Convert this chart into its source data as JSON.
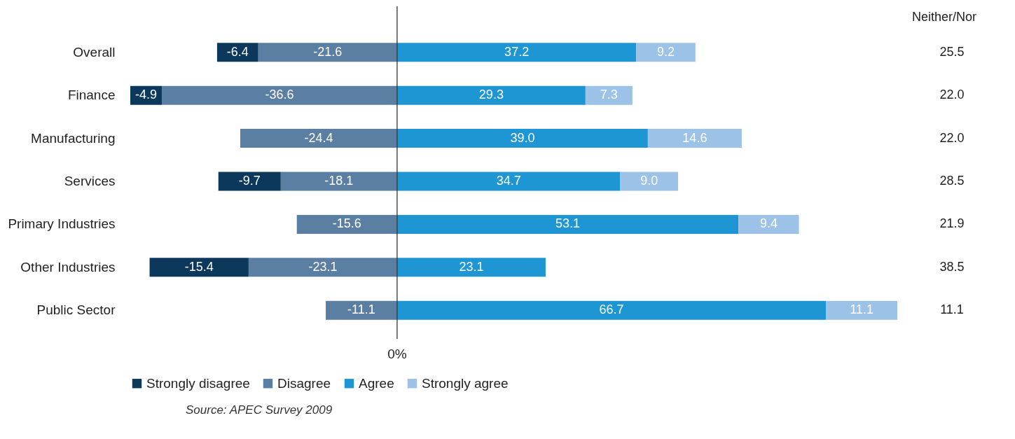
{
  "chart_data": {
    "type": "bar",
    "orientation": "horizontal",
    "stacked": true,
    "legend": "bottom",
    "categories": [
      "Overall",
      "Finance",
      "Manufacturing",
      "Services",
      "Primary Industries",
      "Other Industries",
      "Public Sector"
    ],
    "series": [
      {
        "name": "Disagree",
        "color": "#5b7ea3",
        "values": [
          -21.6,
          -36.6,
          -24.4,
          -18.1,
          -15.6,
          -23.1,
          -11.1
        ],
        "value_labels": [
          "-21.6",
          "-36.6",
          "-24.4",
          "-18.1",
          "-15.6",
          "-23.1",
          "-11.1"
        ]
      },
      {
        "name": "Strongly disagree",
        "color": "#0c385c",
        "values": [
          -6.4,
          -4.9,
          null,
          -9.7,
          null,
          -15.4,
          null
        ],
        "value_labels": [
          "-6.4",
          "-4.9",
          null,
          "-9.7",
          null,
          "-15.4",
          null
        ]
      },
      {
        "name": "Agree",
        "color": "#1f96d4",
        "values": [
          37.2,
          29.3,
          39.0,
          34.7,
          53.1,
          23.1,
          66.7
        ],
        "value_labels": [
          "37.2",
          "29.3",
          "39.0",
          "34.7",
          "53.1",
          "23.1",
          "66.7"
        ]
      },
      {
        "name": "Strongly agree",
        "color": "#9cc2e7",
        "values": [
          9.2,
          7.3,
          14.6,
          9.0,
          9.4,
          null,
          11.1
        ],
        "value_labels": [
          "9.2",
          "7.3",
          "14.6",
          "9.0",
          "9.4",
          null,
          "11.1"
        ]
      }
    ],
    "ref_lines": [
      {
        "axis": "x",
        "value": 0,
        "color": "#333333"
      }
    ],
    "annotations": [
      "0%",
      "Neither/Nor",
      "25.5",
      "22.0",
      "22.0",
      "28.5",
      "21.9",
      "38.5",
      "11.1",
      "Source: APEC Survey 2009"
    ]
  }
}
